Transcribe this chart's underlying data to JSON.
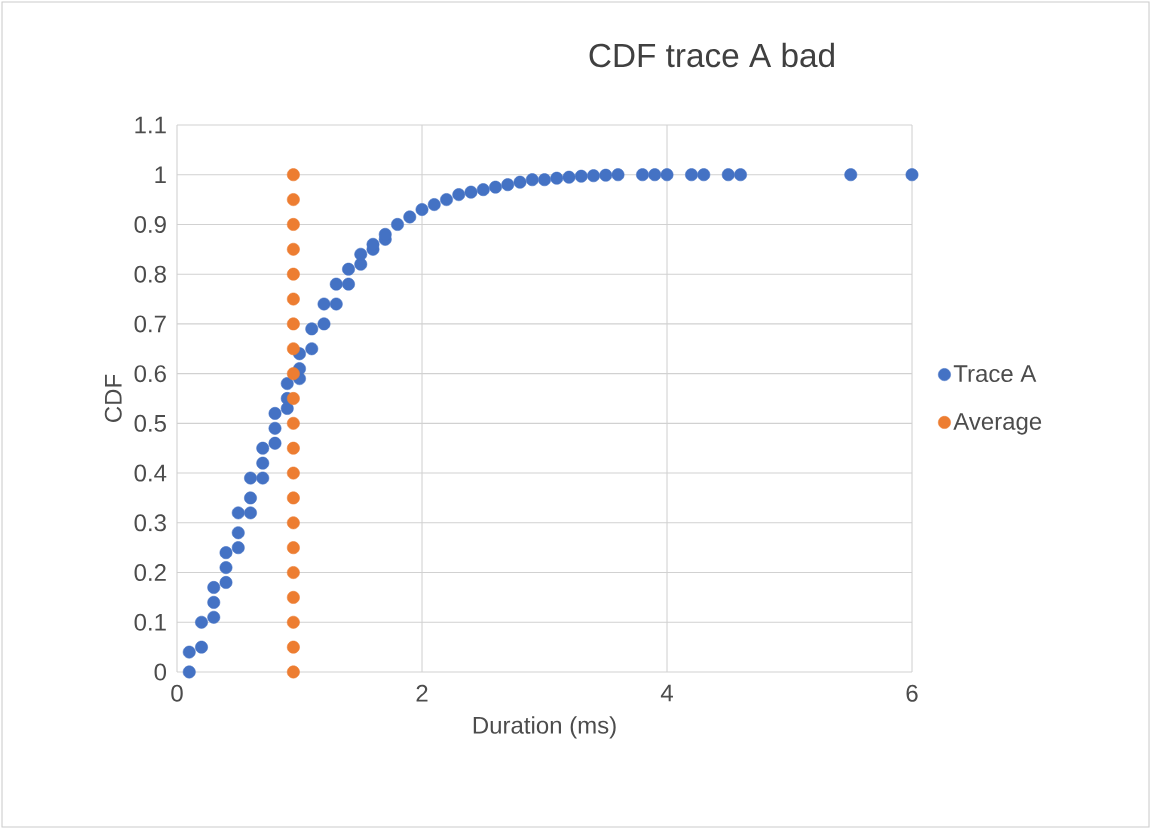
{
  "chart_data": {
    "type": "scatter",
    "title": "CDF trace A bad",
    "xlabel": "Duration (ms)",
    "ylabel": "CDF",
    "xlim": [
      0,
      6
    ],
    "xticks": [
      0,
      2,
      4,
      6
    ],
    "ylim": [
      0,
      1.1
    ],
    "yticks": [
      0,
      0.1,
      0.2,
      0.3,
      0.4,
      0.5,
      0.6,
      0.7,
      0.8,
      0.9,
      1,
      1.1
    ],
    "grid": true,
    "legend": "right",
    "marker": "circle",
    "series": [
      {
        "name": "Trace A",
        "color": "#4472c4",
        "x": [
          0.1,
          0.1,
          0.2,
          0.2,
          0.3,
          0.3,
          0.3,
          0.4,
          0.4,
          0.4,
          0.5,
          0.5,
          0.5,
          0.6,
          0.6,
          0.6,
          0.7,
          0.7,
          0.7,
          0.8,
          0.8,
          0.8,
          0.9,
          0.9,
          0.9,
          1.0,
          1.0,
          1.0,
          1.1,
          1.1,
          1.2,
          1.2,
          1.3,
          1.3,
          1.4,
          1.4,
          1.5,
          1.5,
          1.6,
          1.6,
          1.7,
          1.7,
          1.8,
          1.9,
          2.0,
          2.1,
          2.2,
          2.3,
          2.4,
          2.5,
          2.6,
          2.7,
          2.8,
          2.9,
          3.0,
          3.1,
          3.2,
          3.3,
          3.4,
          3.5,
          3.6,
          3.8,
          3.9,
          4.0,
          4.2,
          4.3,
          4.5,
          4.6,
          5.5,
          6.0
        ],
        "values": [
          0,
          0.04,
          0.05,
          0.1,
          0.11,
          0.14,
          0.17,
          0.18,
          0.21,
          0.24,
          0.25,
          0.28,
          0.32,
          0.32,
          0.35,
          0.39,
          0.39,
          0.42,
          0.45,
          0.46,
          0.49,
          0.52,
          0.53,
          0.55,
          0.58,
          0.59,
          0.61,
          0.64,
          0.65,
          0.69,
          0.7,
          0.74,
          0.74,
          0.78,
          0.78,
          0.81,
          0.82,
          0.84,
          0.85,
          0.86,
          0.87,
          0.88,
          0.9,
          0.915,
          0.93,
          0.94,
          0.95,
          0.96,
          0.965,
          0.97,
          0.975,
          0.98,
          0.985,
          0.99,
          0.99,
          0.993,
          0.995,
          0.997,
          0.998,
          0.999,
          1,
          1,
          1,
          1,
          1,
          1,
          1,
          1,
          1,
          1
        ]
      },
      {
        "name": "Average",
        "color": "#ed7d31",
        "x": [
          0.95,
          0.95,
          0.95,
          0.95,
          0.95,
          0.95,
          0.95,
          0.95,
          0.95,
          0.95,
          0.95,
          0.95,
          0.95,
          0.95,
          0.95,
          0.95,
          0.95,
          0.95,
          0.95,
          0.95,
          0.95
        ],
        "values": [
          0,
          0.05,
          0.1,
          0.15,
          0.2,
          0.25,
          0.3,
          0.35,
          0.4,
          0.45,
          0.5,
          0.55,
          0.6,
          0.65,
          0.7,
          0.75,
          0.8,
          0.85,
          0.9,
          0.95,
          1
        ]
      }
    ]
  }
}
